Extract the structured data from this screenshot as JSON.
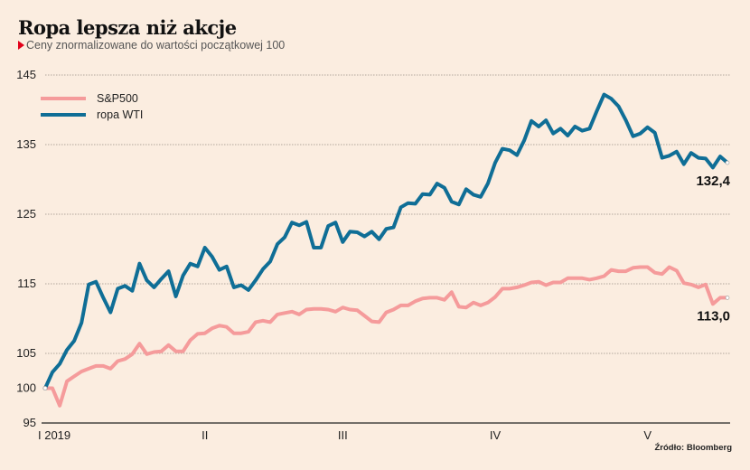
{
  "header": {
    "title": "Ropa lepsza niż akcje",
    "subtitle": "Ceny znormalizowane do wartości początkowej 100"
  },
  "footer": {
    "source": "Źródło: Bloomberg"
  },
  "colors": {
    "sp500": "#f59b9b",
    "wti": "#0f6e96",
    "accent": "#e2001a",
    "background": "#fbede0"
  },
  "chart_data": {
    "type": "line",
    "title": "Ropa lepsza niż akcje",
    "subtitle": "Ceny znormalizowane do wartości początkowej 100",
    "xlabel": "",
    "ylabel": "",
    "ylim": [
      95,
      145
    ],
    "yticks": [
      {
        "value": 145,
        "label": "145"
      },
      {
        "value": 135,
        "label": "135"
      },
      {
        "value": 125,
        "label": "125"
      },
      {
        "value": 115,
        "label": "115"
      },
      {
        "value": 105,
        "label": "105"
      },
      {
        "value": 100,
        "label": "100"
      },
      {
        "value": 95,
        "label": "95"
      }
    ],
    "gridlines_at": [
      145,
      135,
      125,
      115,
      105
    ],
    "xticks": [
      {
        "index": 0,
        "label": "I 2019"
      },
      {
        "index": 22,
        "label": "II"
      },
      {
        "index": 41,
        "label": "III"
      },
      {
        "index": 62,
        "label": "IV"
      },
      {
        "index": 83,
        "label": "V"
      }
    ],
    "legend_position": "top-left",
    "series": [
      {
        "name": "S&P500",
        "color": "#f59b9b",
        "end_label": "113,0",
        "values": [
          100.0,
          100.0,
          97.5,
          101.0,
          101.7,
          102.4,
          102.8,
          103.2,
          103.2,
          102.8,
          103.9,
          104.2,
          104.9,
          106.4,
          104.9,
          105.2,
          105.3,
          106.2,
          105.3,
          105.3,
          106.9,
          107.8,
          107.9,
          108.6,
          109.0,
          108.8,
          107.9,
          107.9,
          108.1,
          109.5,
          109.7,
          109.5,
          110.6,
          110.8,
          111.0,
          110.6,
          111.3,
          111.4,
          111.4,
          111.3,
          111.0,
          111.6,
          111.3,
          111.2,
          110.4,
          109.6,
          109.5,
          110.9,
          111.3,
          111.9,
          111.9,
          112.5,
          112.9,
          113.0,
          113.0,
          112.7,
          113.8,
          111.7,
          111.6,
          112.3,
          111.9,
          112.3,
          113.1,
          114.3,
          114.3,
          114.5,
          114.8,
          115.2,
          115.3,
          114.8,
          115.2,
          115.2,
          115.8,
          115.8,
          115.8,
          115.6,
          115.8,
          116.1,
          117.0,
          116.8,
          116.8,
          117.3,
          117.4,
          117.4,
          116.6,
          116.4,
          117.4,
          116.9,
          115.1,
          114.9,
          114.5,
          114.9,
          112.1,
          113.0,
          113.0
        ]
      },
      {
        "name": "ropa WTI",
        "color": "#0f6e96",
        "end_label": "132,4",
        "values": [
          100.0,
          102.3,
          103.5,
          105.5,
          106.8,
          109.4,
          114.9,
          115.3,
          113.0,
          110.9,
          114.3,
          114.7,
          114.0,
          117.9,
          115.5,
          114.5,
          115.7,
          116.8,
          113.2,
          116.2,
          117.9,
          117.5,
          120.2,
          118.9,
          117.0,
          117.5,
          114.5,
          114.8,
          114.1,
          115.5,
          117.1,
          118.2,
          120.7,
          121.7,
          123.8,
          123.4,
          123.9,
          120.2,
          120.2,
          123.3,
          123.8,
          121.0,
          122.5,
          122.4,
          121.8,
          122.5,
          121.4,
          122.9,
          123.1,
          126.0,
          126.6,
          126.5,
          127.9,
          127.8,
          129.4,
          128.8,
          126.8,
          126.4,
          128.6,
          127.8,
          127.5,
          129.4,
          132.4,
          134.4,
          134.2,
          133.5,
          135.6,
          138.4,
          137.6,
          138.5,
          136.6,
          137.3,
          136.3,
          137.6,
          137.0,
          137.3,
          139.8,
          142.2,
          141.6,
          140.5,
          138.5,
          136.2,
          136.6,
          137.5,
          136.7,
          133.1,
          133.4,
          134.0,
          132.2,
          133.8,
          133.1,
          133.0,
          131.7,
          133.3,
          132.4
        ]
      }
    ]
  }
}
